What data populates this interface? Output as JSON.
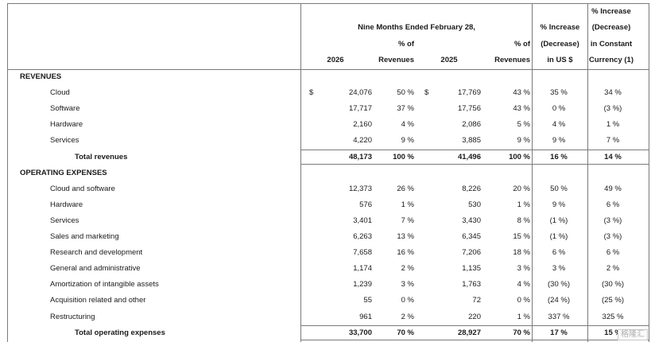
{
  "header": {
    "period_title": "Nine Months Ended February 28,",
    "col_2026": "2026",
    "col_2026_pct_line1": "% of",
    "col_2026_pct_line2": "Revenues",
    "col_2025": "2025",
    "col_2025_pct_line1": "% of",
    "col_2025_pct_line2": "Revenues",
    "usd_change_line1": "% Increase",
    "usd_change_line2": "(Decrease)",
    "usd_change_line3": "in US $",
    "cc_change_line1": "% Increase",
    "cc_change_line2": "(Decrease)",
    "cc_change_line3": "in Constant",
    "cc_change_line4": "Currency (1)"
  },
  "rows": [
    {
      "label": "REVENUES",
      "type": "section"
    },
    {
      "label": "Cloud",
      "type": "item",
      "dollar": "$",
      "v2026": "24,076",
      "p2026": "50 %",
      "v2025": "17,769",
      "p2025": "43 %",
      "usd": "35 %",
      "cc": "34 %"
    },
    {
      "label": "Software",
      "type": "item",
      "v2026": "17,717",
      "p2026": "37 %",
      "v2025": "17,756",
      "p2025": "43 %",
      "usd": "0 %",
      "cc": "(3 %)"
    },
    {
      "label": "Hardware",
      "type": "item",
      "v2026": "2,160",
      "p2026": "4 %",
      "v2025": "2,086",
      "p2025": "5 %",
      "usd": "4 %",
      "cc": "1 %"
    },
    {
      "label": "Services",
      "type": "item",
      "v2026": "4,220",
      "p2026": "9 %",
      "v2025": "3,885",
      "p2025": "9 %",
      "usd": "9 %",
      "cc": "7 %"
    },
    {
      "label": "Total revenues",
      "type": "total",
      "v2026": "48,173",
      "p2026": "100 %",
      "v2025": "41,496",
      "p2025": "100 %",
      "usd": "16 %",
      "cc": "14 %"
    },
    {
      "label": "OPERATING EXPENSES",
      "type": "section"
    },
    {
      "label": "Cloud and software",
      "type": "item",
      "v2026": "12,373",
      "p2026": "26 %",
      "v2025": "8,226",
      "p2025": "20 %",
      "usd": "50 %",
      "cc": "49 %"
    },
    {
      "label": "Hardware",
      "type": "item",
      "v2026": "576",
      "p2026": "1 %",
      "v2025": "530",
      "p2025": "1 %",
      "usd": "9 %",
      "cc": "6 %"
    },
    {
      "label": "Services",
      "type": "item",
      "v2026": "3,401",
      "p2026": "7 %",
      "v2025": "3,430",
      "p2025": "8 %",
      "usd": "(1 %)",
      "cc": "(3 %)"
    },
    {
      "label": "Sales and marketing",
      "type": "item",
      "v2026": "6,263",
      "p2026": "13 %",
      "v2025": "6,345",
      "p2025": "15 %",
      "usd": "(1 %)",
      "cc": "(3 %)"
    },
    {
      "label": "Research and development",
      "type": "item",
      "v2026": "7,658",
      "p2026": "16 %",
      "v2025": "7,206",
      "p2025": "18 %",
      "usd": "6 %",
      "cc": "6 %"
    },
    {
      "label": "General and administrative",
      "type": "item",
      "v2026": "1,174",
      "p2026": "2 %",
      "v2025": "1,135",
      "p2025": "3 %",
      "usd": "3 %",
      "cc": "2 %"
    },
    {
      "label": "Amortization of intangible assets",
      "type": "item",
      "v2026": "1,239",
      "p2026": "3 %",
      "v2025": "1,763",
      "p2025": "4 %",
      "usd": "(30 %)",
      "cc": "(30 %)"
    },
    {
      "label": "Acquisition related and other",
      "type": "item",
      "v2026": "55",
      "p2026": "0 %",
      "v2025": "72",
      "p2025": "0 %",
      "usd": "(24 %)",
      "cc": "(25 %)"
    },
    {
      "label": "Restructuring",
      "type": "item",
      "v2026": "961",
      "p2026": "2 %",
      "v2025": "220",
      "p2025": "1 %",
      "usd": "337 %",
      "cc": "325 %"
    },
    {
      "label": "Total operating expenses",
      "type": "total",
      "v2026": "33,700",
      "p2026": "70 %",
      "v2025": "28,927",
      "p2025": "70 %",
      "usd": "17 %",
      "cc": "15 %"
    }
  ],
  "watermark": "格隆汇"
}
